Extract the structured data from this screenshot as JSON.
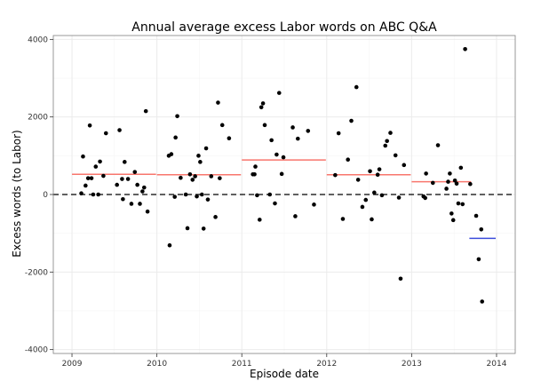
{
  "chart_data": {
    "type": "scatter",
    "title": "Annual average excess Labor words on ABC Q&A",
    "xlabel": "Episode date",
    "ylabel": "Excess words (to Labor)",
    "xlim": [
      2008.78,
      2014.22
    ],
    "ylim": [
      -4100,
      4100
    ],
    "x_ticks": [
      {
        "value": 2009,
        "label": "2009"
      },
      {
        "value": 2010,
        "label": "2010"
      },
      {
        "value": 2011,
        "label": "2011"
      },
      {
        "value": 2012,
        "label": "2012"
      },
      {
        "value": 2013,
        "label": "2013"
      },
      {
        "value": 2014,
        "label": "2014"
      }
    ],
    "y_ticks": [
      {
        "value": 4000,
        "label": "4000"
      },
      {
        "value": 2000,
        "label": "2000"
      },
      {
        "value": 0,
        "label": "0"
      },
      {
        "value": -2000,
        "label": "-2000"
      },
      {
        "value": -4000,
        "label": "-4000"
      }
    ],
    "grid": true,
    "zero_line": true,
    "points": [
      {
        "x": 2009.11,
        "y": 30
      },
      {
        "x": 2009.13,
        "y": 980
      },
      {
        "x": 2009.16,
        "y": 230
      },
      {
        "x": 2009.19,
        "y": 420
      },
      {
        "x": 2009.21,
        "y": 1780
      },
      {
        "x": 2009.23,
        "y": 420
      },
      {
        "x": 2009.25,
        "y": 0
      },
      {
        "x": 2009.28,
        "y": 720
      },
      {
        "x": 2009.31,
        "y": 0
      },
      {
        "x": 2009.33,
        "y": 850
      },
      {
        "x": 2009.37,
        "y": 480
      },
      {
        "x": 2009.4,
        "y": 1580
      },
      {
        "x": 2009.53,
        "y": 250
      },
      {
        "x": 2009.56,
        "y": 1660
      },
      {
        "x": 2009.59,
        "y": 400
      },
      {
        "x": 2009.6,
        "y": -120
      },
      {
        "x": 2009.62,
        "y": 840
      },
      {
        "x": 2009.66,
        "y": 400
      },
      {
        "x": 2009.7,
        "y": -240
      },
      {
        "x": 2009.74,
        "y": 580
      },
      {
        "x": 2009.77,
        "y": 250
      },
      {
        "x": 2009.8,
        "y": -240
      },
      {
        "x": 2009.83,
        "y": 80
      },
      {
        "x": 2009.85,
        "y": 180
      },
      {
        "x": 2009.89,
        "y": -440
      },
      {
        "x": 2009.87,
        "y": 2150
      },
      {
        "x": 2010.14,
        "y": 1000
      },
      {
        "x": 2010.15,
        "y": -1310
      },
      {
        "x": 2010.17,
        "y": 1040
      },
      {
        "x": 2010.21,
        "y": -60
      },
      {
        "x": 2010.22,
        "y": 1470
      },
      {
        "x": 2010.24,
        "y": 2020
      },
      {
        "x": 2010.28,
        "y": 430
      },
      {
        "x": 2010.34,
        "y": 0
      },
      {
        "x": 2010.36,
        "y": -870
      },
      {
        "x": 2010.39,
        "y": 520
      },
      {
        "x": 2010.42,
        "y": 380
      },
      {
        "x": 2010.45,
        "y": 470
      },
      {
        "x": 2010.47,
        "y": -50
      },
      {
        "x": 2010.49,
        "y": 1000
      },
      {
        "x": 2010.51,
        "y": 840
      },
      {
        "x": 2010.53,
        "y": 0
      },
      {
        "x": 2010.55,
        "y": -880
      },
      {
        "x": 2010.58,
        "y": 1190
      },
      {
        "x": 2010.6,
        "y": -130
      },
      {
        "x": 2010.64,
        "y": 470
      },
      {
        "x": 2010.69,
        "y": -580
      },
      {
        "x": 2010.72,
        "y": 2370
      },
      {
        "x": 2010.74,
        "y": 420
      },
      {
        "x": 2010.77,
        "y": 1790
      },
      {
        "x": 2010.85,
        "y": 1450
      },
      {
        "x": 2011.13,
        "y": 520
      },
      {
        "x": 2011.15,
        "y": 520
      },
      {
        "x": 2011.16,
        "y": 720
      },
      {
        "x": 2011.18,
        "y": -20
      },
      {
        "x": 2011.21,
        "y": -650
      },
      {
        "x": 2011.23,
        "y": 2250
      },
      {
        "x": 2011.25,
        "y": 2350
      },
      {
        "x": 2011.27,
        "y": 1790
      },
      {
        "x": 2011.33,
        "y": 0
      },
      {
        "x": 2011.35,
        "y": 1400
      },
      {
        "x": 2011.39,
        "y": -230
      },
      {
        "x": 2011.41,
        "y": 1030
      },
      {
        "x": 2011.44,
        "y": 2620
      },
      {
        "x": 2011.47,
        "y": 530
      },
      {
        "x": 2011.49,
        "y": 960
      },
      {
        "x": 2011.6,
        "y": 1730
      },
      {
        "x": 2011.63,
        "y": -560
      },
      {
        "x": 2011.66,
        "y": 1440
      },
      {
        "x": 2011.78,
        "y": 1640
      },
      {
        "x": 2011.85,
        "y": -260
      },
      {
        "x": 2012.1,
        "y": 500
      },
      {
        "x": 2012.14,
        "y": 1580
      },
      {
        "x": 2012.19,
        "y": -630
      },
      {
        "x": 2012.25,
        "y": 900
      },
      {
        "x": 2012.29,
        "y": 1900
      },
      {
        "x": 2012.35,
        "y": 2770
      },
      {
        "x": 2012.37,
        "y": 380
      },
      {
        "x": 2012.42,
        "y": -320
      },
      {
        "x": 2012.46,
        "y": -140
      },
      {
        "x": 2012.51,
        "y": 600
      },
      {
        "x": 2012.53,
        "y": -640
      },
      {
        "x": 2012.56,
        "y": 50
      },
      {
        "x": 2012.6,
        "y": 510
      },
      {
        "x": 2012.62,
        "y": 650
      },
      {
        "x": 2012.65,
        "y": -20
      },
      {
        "x": 2012.69,
        "y": 1260
      },
      {
        "x": 2012.71,
        "y": 1380
      },
      {
        "x": 2012.75,
        "y": 1590
      },
      {
        "x": 2012.81,
        "y": 1010
      },
      {
        "x": 2012.85,
        "y": -80
      },
      {
        "x": 2012.87,
        "y": -2170
      },
      {
        "x": 2012.91,
        "y": 760
      },
      {
        "x": 2013.14,
        "y": -50
      },
      {
        "x": 2013.16,
        "y": -90
      },
      {
        "x": 2013.17,
        "y": 540
      },
      {
        "x": 2013.25,
        "y": 300
      },
      {
        "x": 2013.31,
        "y": 1270
      },
      {
        "x": 2013.41,
        "y": 150
      },
      {
        "x": 2013.43,
        "y": 330
      },
      {
        "x": 2013.45,
        "y": 540
      },
      {
        "x": 2013.47,
        "y": -490
      },
      {
        "x": 2013.49,
        "y": -660
      },
      {
        "x": 2013.51,
        "y": 360
      },
      {
        "x": 2013.53,
        "y": 280
      },
      {
        "x": 2013.55,
        "y": -230
      },
      {
        "x": 2013.58,
        "y": 690
      },
      {
        "x": 2013.6,
        "y": -250
      },
      {
        "x": 2013.63,
        "y": 3750
      },
      {
        "x": 2013.69,
        "y": 270
      },
      {
        "x": 2013.76,
        "y": -550
      },
      {
        "x": 2013.79,
        "y": -1670
      },
      {
        "x": 2013.82,
        "y": -900
      },
      {
        "x": 2013.83,
        "y": -2760
      }
    ],
    "averages": [
      {
        "x_start": 2009.0,
        "x_end": 2009.99,
        "y": 520,
        "color": "#f8766d"
      },
      {
        "x_start": 2010.0,
        "x_end": 2010.99,
        "y": 510,
        "color": "#f8766d"
      },
      {
        "x_start": 2011.0,
        "x_end": 2011.99,
        "y": 890,
        "color": "#f8766d"
      },
      {
        "x_start": 2012.0,
        "x_end": 2012.99,
        "y": 510,
        "color": "#f8766d"
      },
      {
        "x_start": 2013.0,
        "x_end": 2013.7,
        "y": 330,
        "color": "#f8766d"
      },
      {
        "x_start": 2013.68,
        "x_end": 2013.99,
        "y": -1130,
        "color": "#3b4cdb"
      }
    ],
    "colors": {
      "panel_background": "#ffffff",
      "panel_border": "#7f7f7f",
      "grid_major": "#ebebeb",
      "grid_minor": "#f5f5f5",
      "point": "#000000",
      "zero_line": "#000000"
    }
  }
}
